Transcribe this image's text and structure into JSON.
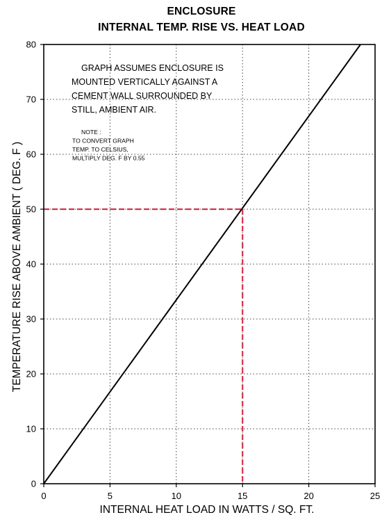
{
  "chart_data": {
    "type": "line",
    "title": "ENCLOSURE",
    "subtitle": "INTERNAL TEMP. RISE VS. HEAT LOAD",
    "xlabel": "INTERNAL HEAT LOAD IN WATTS / SQ. FT.",
    "ylabel": "TEMPERATURE RISE ABOVE AMBIENT  ( DEG. F )",
    "xlim": [
      0,
      25
    ],
    "ylim": [
      0,
      80
    ],
    "x_ticks": [
      0,
      5,
      10,
      15,
      20,
      25
    ],
    "y_ticks": [
      0,
      10,
      20,
      30,
      40,
      50,
      60,
      70,
      80
    ],
    "grid": true,
    "series": [
      {
        "x": [
          0,
          23.9
        ],
        "y": [
          0,
          80
        ],
        "color": "#000000"
      }
    ],
    "reference_lines": {
      "x": 15,
      "y": 50,
      "color": "#d6304a"
    },
    "annotation": {
      "lines": [
        "GRAPH ASSUMES ENCLOSURE IS",
        "MOUNTED VERTICALLY AGAINST A",
        "CEMENT WALL SURROUNDED BY",
        "STILL, AMBIENT AIR."
      ]
    },
    "note": {
      "heading": "NOTE :",
      "lines": [
        "TO CONVERT GRAPH",
        "TEMP. TO CELSIUS,",
        "MULTIPLY DEG. F BY 0.55"
      ]
    }
  }
}
